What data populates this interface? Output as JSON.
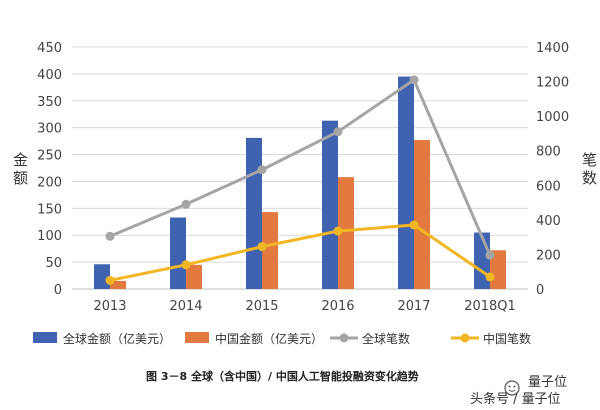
{
  "chart_data": {
    "type": "bar",
    "categories": [
      "2013",
      "2014",
      "2015",
      "2016",
      "2017",
      "2018Q1"
    ],
    "series": [
      {
        "name": "全球金额（亿美元）",
        "kind": "bar",
        "axis": "left",
        "color": "#3f63b0",
        "values": [
          46,
          133,
          281,
          313,
          395,
          105
        ]
      },
      {
        "name": "中国金额（亿美元）",
        "kind": "bar",
        "axis": "left",
        "color": "#e27a3f",
        "values": [
          15,
          45,
          143,
          208,
          277,
          72
        ]
      },
      {
        "name": "全球笔数",
        "kind": "line",
        "axis": "right",
        "color": "#a5a5a5",
        "values": [
          305,
          490,
          690,
          910,
          1210,
          195
        ]
      },
      {
        "name": "中国笔数",
        "kind": "line",
        "axis": "right",
        "color": "#f2b622",
        "values": [
          50,
          140,
          245,
          335,
          370,
          70
        ]
      }
    ],
    "left_axis": {
      "label": "金额",
      "ylim": [
        0,
        450
      ],
      "ticks": [
        "0",
        "50",
        "100",
        "150",
        "200",
        "250",
        "300",
        "350",
        "400",
        "450"
      ]
    },
    "right_axis": {
      "label": "笔数",
      "ylim": [
        0,
        1400
      ],
      "ticks": [
        "0",
        "200",
        "400",
        "600",
        "800",
        "1000",
        "1200",
        "1400"
      ]
    },
    "grid": true,
    "legend_position": "bottom",
    "caption": "图 3－8 全球（含中国）/ 中国人工智能投融资变化趋势"
  },
  "watermark": {
    "line1": "量子位",
    "line2": "头条号 / 量子位"
  }
}
